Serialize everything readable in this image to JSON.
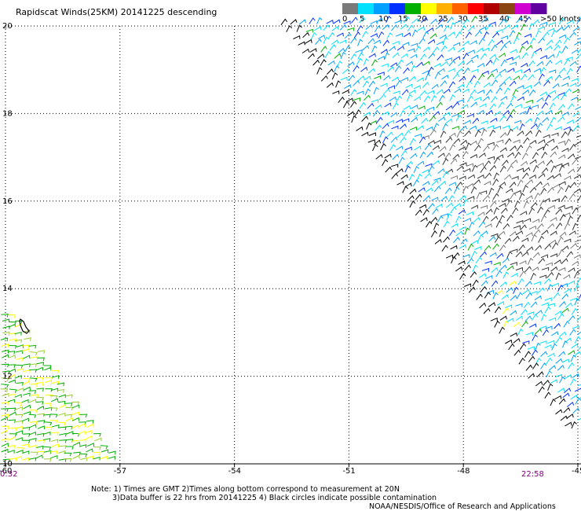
{
  "title": "Rapidscat Winds(25KM) 20141225 descending",
  "colorbar": {
    "labels": [
      "0",
      "5",
      "10",
      "15",
      "20",
      "25",
      "30",
      "35",
      "40",
      "45",
      ">50 knots"
    ],
    "colors": [
      "#7a7a7a",
      "#00e0ff",
      "#00a0ff",
      "#0030ff",
      "#00b000",
      "#ffff00",
      "#ffb000",
      "#ff6000",
      "#ff0000",
      "#b00000",
      "#8b4513",
      "#d000d0",
      "#6000a0"
    ]
  },
  "map": {
    "lon_ticks": [
      "-60",
      "-57",
      "-54",
      "-51",
      "-48",
      "-45"
    ],
    "lat_ticks": [
      "20",
      "18",
      "16",
      "14",
      "12",
      "10"
    ],
    "lon_range": [
      -60,
      -45
    ],
    "lat_range": [
      10,
      20
    ],
    "grid": "dotted"
  },
  "times": {
    "left": "0:32",
    "right": "22:58"
  },
  "notes": [
    "Note: 1) Times are GMT 2)Times along bottom correspond to measurement at 20N",
    "3)Data buffer is 22 hrs from 20141225 4) Black circles indicate possible contamination",
    "NOAA/NESDIS/Office of Research and Applications"
  ]
}
